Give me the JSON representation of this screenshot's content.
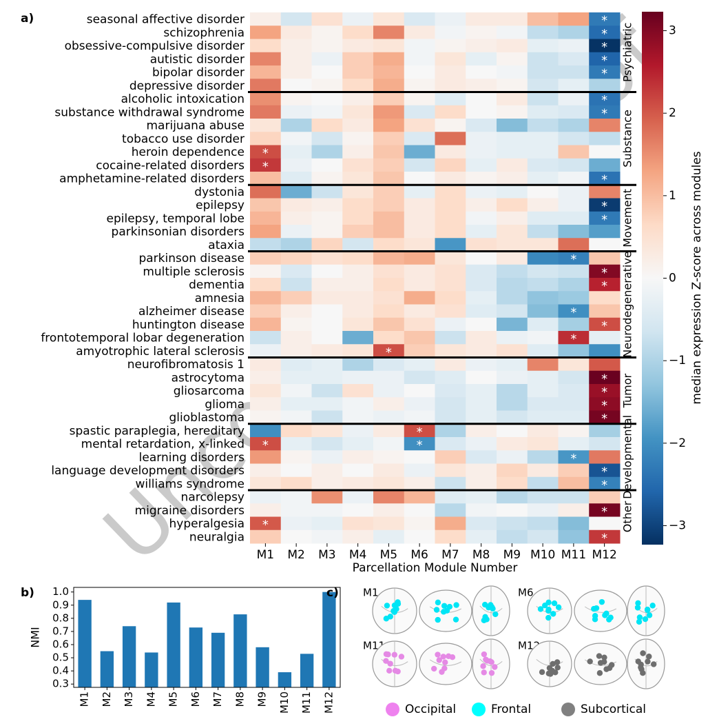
{
  "watermark": "Uncorrected Proof",
  "chart_data": [
    {
      "type": "heatmap",
      "panel_label": "a)",
      "xlabel": "Parcellation Module Number",
      "categories": [
        "M1",
        "M2",
        "M3",
        "M4",
        "M5",
        "M6",
        "M7",
        "M8",
        "M9",
        "M10",
        "M11",
        "M12"
      ],
      "rows": [
        "seasonal affective disorder",
        "schizophrenia",
        "obsessive-compulsive disorder",
        "autistic disorder",
        "bipolar disorder",
        "depressive disorder",
        "alcoholic intoxication",
        "substance withdrawal syndrome",
        "marijuana abuse",
        "tobacco use disorder",
        "heroin dependence",
        "cocaine-related disorders",
        "amphetamine-related disorders",
        "dystonia",
        "epilepsy",
        "epilepsy, temporal lobe",
        "parkinsonian disorders",
        "ataxia",
        "parkinson disease",
        "multiple sclerosis",
        "dementia",
        "amnesia",
        "alzheimer disease",
        "huntington disease",
        "frontotemporal lobar degeneration",
        "amyotrophic lateral sclerosis",
        "neurofibromatosis 1",
        "astrocytoma",
        "gliosarcoma",
        "glioma",
        "glioblastoma",
        "spastic paraplegia, hereditary",
        "mental retardation, x-linked",
        "learning disorders",
        "language development disorders",
        "williams syndrome",
        "narcolepsy",
        "migraine disorders",
        "hyperalgesia",
        "neuralgia"
      ],
      "values": [
        [
          0.2,
          -0.6,
          0.5,
          -0.2,
          0.4,
          -0.5,
          -0.2,
          0.3,
          0.3,
          1.0,
          1.3,
          -2.3
        ],
        [
          1.3,
          0.3,
          0.1,
          0.6,
          1.6,
          0.3,
          -0.1,
          0.1,
          -0.1,
          -0.8,
          -1.0,
          -2.5
        ],
        [
          0.6,
          0.2,
          0.1,
          0.3,
          0.4,
          -0.1,
          0.1,
          0.2,
          0.3,
          -0.3,
          -0.2,
          -3.2
        ],
        [
          1.6,
          0.2,
          -0.2,
          0.8,
          1.2,
          -0.1,
          0.4,
          -0.3,
          0.1,
          -0.7,
          -0.5,
          -2.6
        ],
        [
          1.1,
          0.2,
          0.0,
          0.8,
          1.1,
          0.0,
          0.3,
          0.0,
          -0.1,
          -0.7,
          -0.7,
          -2.3
        ],
        [
          1.7,
          0.0,
          0.1,
          0.6,
          1.2,
          0.1,
          0.3,
          0.2,
          0.1,
          -0.6,
          -0.3,
          -1.0
        ],
        [
          1.5,
          0.1,
          0.0,
          0.2,
          0.8,
          0.1,
          -0.4,
          0.0,
          0.3,
          -0.7,
          -0.2,
          -2.4
        ],
        [
          1.7,
          -0.2,
          -0.1,
          0.4,
          1.4,
          -0.5,
          0.6,
          0.0,
          0.1,
          -0.4,
          -0.5,
          -2.3
        ],
        [
          0.4,
          -1.0,
          0.6,
          0.3,
          1.3,
          0.5,
          0.1,
          -0.5,
          -1.4,
          -0.8,
          -1.0,
          1.6
        ],
        [
          0.7,
          -0.1,
          -0.6,
          0.1,
          0.8,
          -0.5,
          1.8,
          -0.2,
          -0.3,
          -0.3,
          -0.6,
          -0.8
        ],
        [
          2.1,
          -0.3,
          -1.0,
          0.2,
          0.9,
          -1.6,
          0.3,
          -0.2,
          -0.3,
          -0.3,
          0.9,
          0.0
        ],
        [
          2.3,
          -0.2,
          0.0,
          0.5,
          0.8,
          -0.6,
          0.7,
          -0.3,
          0.3,
          -0.5,
          -0.6,
          -1.6
        ],
        [
          1.0,
          -0.4,
          0.1,
          0.4,
          0.9,
          0.0,
          0.3,
          0.1,
          0.2,
          -0.3,
          -0.1,
          -2.4
        ],
        [
          1.8,
          -1.6,
          -0.7,
          0.4,
          0.8,
          -0.3,
          0.6,
          -0.2,
          -0.3,
          0.0,
          -0.2,
          1.6
        ],
        [
          0.9,
          0.3,
          0.2,
          0.6,
          0.8,
          0.3,
          0.6,
          0.2,
          0.6,
          0.2,
          -0.2,
          -3.1
        ],
        [
          1.1,
          0.2,
          0.1,
          0.6,
          1.0,
          0.3,
          0.6,
          -0.1,
          0.2,
          -0.4,
          -0.4,
          -2.3
        ],
        [
          1.3,
          -0.2,
          0.1,
          0.8,
          1.0,
          0.3,
          0.6,
          -0.3,
          0.4,
          -0.8,
          -1.4,
          -1.8
        ],
        [
          -0.8,
          -1.0,
          0.7,
          -0.6,
          0.6,
          0.4,
          -1.9,
          0.5,
          0.4,
          0.4,
          1.8,
          0.0
        ],
        [
          0.8,
          0.7,
          0.5,
          0.6,
          1.1,
          1.2,
          0.4,
          0.0,
          0.3,
          -2.1,
          -2.2,
          0.9
        ],
        [
          0.1,
          -0.5,
          0.0,
          0.2,
          0.5,
          0.3,
          0.5,
          -0.5,
          -0.8,
          -0.6,
          -0.7,
          3.0
        ],
        [
          0.6,
          -0.7,
          0.2,
          0.2,
          0.6,
          0.3,
          0.5,
          -0.5,
          -0.9,
          -0.8,
          -1.0,
          2.5
        ],
        [
          1.1,
          0.8,
          0.3,
          0.3,
          0.5,
          1.2,
          0.6,
          -0.3,
          -0.9,
          -1.3,
          -1.2,
          0.6
        ],
        [
          0.8,
          0.2,
          0.0,
          0.3,
          0.6,
          0.3,
          0.5,
          -0.4,
          -0.6,
          -1.4,
          -2.0,
          0.9
        ],
        [
          1.1,
          0.1,
          0.0,
          0.4,
          0.9,
          0.5,
          -0.2,
          0.0,
          -1.5,
          -0.4,
          -1.1,
          2.1
        ],
        [
          -0.7,
          0.2,
          0.0,
          -1.6,
          0.6,
          0.9,
          -0.7,
          0.3,
          -0.2,
          -0.1,
          2.4,
          -0.3
        ],
        [
          -0.2,
          0.2,
          0.3,
          0.4,
          2.1,
          0.8,
          0.4,
          0.3,
          0.5,
          -0.4,
          -1.3,
          -2.0
        ],
        [
          0.3,
          -0.4,
          -0.3,
          -1.0,
          -0.5,
          -0.3,
          0.3,
          -0.2,
          -0.3,
          1.6,
          0.4,
          2.0
        ],
        [
          0.2,
          -0.3,
          -0.3,
          -0.2,
          -0.2,
          -0.6,
          -0.4,
          0.0,
          -0.2,
          -0.3,
          -0.6,
          3.2
        ],
        [
          0.4,
          -0.1,
          -0.7,
          0.5,
          -0.2,
          0.0,
          -0.5,
          -0.3,
          -0.9,
          -0.3,
          -0.5,
          2.8
        ],
        [
          0.2,
          -0.3,
          -0.3,
          -0.1,
          0.2,
          -0.2,
          -0.6,
          -0.3,
          -0.9,
          -0.5,
          -0.5,
          2.9
        ],
        [
          0.1,
          -0.1,
          -0.7,
          -0.1,
          -0.2,
          -0.1,
          -0.6,
          -0.3,
          -0.6,
          -0.4,
          -0.4,
          3.1
        ],
        [
          -2.0,
          0.6,
          0.4,
          -0.2,
          0.3,
          2.1,
          -1.0,
          0.2,
          0.0,
          0.3,
          0.1,
          -1.1
        ],
        [
          2.1,
          -0.3,
          -0.6,
          -0.3,
          -0.1,
          -2.0,
          -0.5,
          -0.2,
          0.3,
          0.4,
          -0.3,
          -0.6
        ],
        [
          1.4,
          0.1,
          -0.2,
          0.2,
          0.1,
          0.0,
          0.8,
          -0.5,
          -0.2,
          -0.9,
          -1.9,
          1.7
        ],
        [
          0.2,
          0.0,
          0.2,
          0.0,
          0.3,
          -0.2,
          0.4,
          0.2,
          0.7,
          0.3,
          0.8,
          -2.8
        ],
        [
          0.4,
          0.6,
          0.2,
          0.3,
          0.4,
          0.2,
          -0.7,
          0.2,
          0.6,
          -0.8,
          1.0,
          -2.2
        ],
        [
          -0.2,
          -0.1,
          1.5,
          -0.2,
          1.6,
          1.1,
          -0.4,
          -0.3,
          -0.9,
          -0.7,
          -0.7,
          0.8
        ],
        [
          0.2,
          -0.1,
          -0.1,
          0.0,
          0.2,
          0.0,
          -0.9,
          -0.1,
          0.0,
          -0.2,
          0.2,
          3.1
        ],
        [
          2.0,
          -0.2,
          -0.3,
          0.5,
          0.4,
          0.1,
          1.2,
          -0.5,
          -0.7,
          -0.8,
          -1.4,
          0.0
        ],
        [
          0.8,
          0.0,
          -0.1,
          0.2,
          -0.3,
          0.0,
          0.6,
          -0.3,
          -0.8,
          -0.6,
          -1.3,
          2.3
        ]
      ],
      "annotations": [
        {
          "row": 0,
          "col": 11,
          "text": "*"
        },
        {
          "row": 1,
          "col": 11,
          "text": "*"
        },
        {
          "row": 2,
          "col": 11,
          "text": "*"
        },
        {
          "row": 3,
          "col": 11,
          "text": "*"
        },
        {
          "row": 4,
          "col": 11,
          "text": "*"
        },
        {
          "row": 6,
          "col": 11,
          "text": "*"
        },
        {
          "row": 7,
          "col": 11,
          "text": "*"
        },
        {
          "row": 10,
          "col": 0,
          "text": "*"
        },
        {
          "row": 11,
          "col": 0,
          "text": "*"
        },
        {
          "row": 12,
          "col": 11,
          "text": "*"
        },
        {
          "row": 14,
          "col": 11,
          "text": "*"
        },
        {
          "row": 15,
          "col": 11,
          "text": "*"
        },
        {
          "row": 18,
          "col": 10,
          "text": "*"
        },
        {
          "row": 19,
          "col": 11,
          "text": "*"
        },
        {
          "row": 20,
          "col": 11,
          "text": "*"
        },
        {
          "row": 22,
          "col": 10,
          "text": "*"
        },
        {
          "row": 23,
          "col": 11,
          "text": "*"
        },
        {
          "row": 24,
          "col": 10,
          "text": "*"
        },
        {
          "row": 25,
          "col": 4,
          "text": "*"
        },
        {
          "row": 27,
          "col": 11,
          "text": "*"
        },
        {
          "row": 28,
          "col": 11,
          "text": "*"
        },
        {
          "row": 29,
          "col": 11,
          "text": "*"
        },
        {
          "row": 30,
          "col": 11,
          "text": "*"
        },
        {
          "row": 31,
          "col": 5,
          "text": "*"
        },
        {
          "row": 32,
          "col": 0,
          "text": "*"
        },
        {
          "row": 32,
          "col": 5,
          "text": "*"
        },
        {
          "row": 33,
          "col": 10,
          "text": "*"
        },
        {
          "row": 34,
          "col": 11,
          "text": "*"
        },
        {
          "row": 35,
          "col": 11,
          "text": "*"
        },
        {
          "row": 37,
          "col": 11,
          "text": "*"
        },
        {
          "row": 38,
          "col": 0,
          "text": "*"
        },
        {
          "row": 39,
          "col": 11,
          "text": "*"
        }
      ],
      "groups": [
        {
          "name": "Psychiatric",
          "first": 0,
          "last": 5
        },
        {
          "name": "Substance",
          "first": 6,
          "last": 12
        },
        {
          "name": "Movement",
          "first": 13,
          "last": 17
        },
        {
          "name": "Neurodegenerative",
          "first": 18,
          "last": 25
        },
        {
          "name": "Tumor",
          "first": 26,
          "last": 30
        },
        {
          "name": "Developmental",
          "first": 31,
          "last": 35
        },
        {
          "name": "Other",
          "first": 36,
          "last": 39
        }
      ],
      "colorbar": {
        "label": "median expression Z-score across modules",
        "lim": [
          -3.23,
          3.23
        ],
        "ticks": [
          {
            "value": 3,
            "label": "3"
          },
          {
            "value": 2,
            "label": "2"
          },
          {
            "value": 1,
            "label": "1"
          },
          {
            "value": 0,
            "label": "0"
          },
          {
            "value": -1,
            "label": "−1"
          },
          {
            "value": -2,
            "label": "−2"
          },
          {
            "value": -3,
            "label": "−3"
          }
        ]
      },
      "colormap": [
        "#053061",
        "#2166ac",
        "#4393c3",
        "#92c5de",
        "#d1e5f0",
        "#f7f7f7",
        "#fddbc7",
        "#f4a582",
        "#d6604d",
        "#b2182b",
        "#67001f"
      ]
    },
    {
      "type": "bar",
      "panel_label": "b)",
      "ylabel": "NMI",
      "categories": [
        "M1",
        "M2",
        "M3",
        "M4",
        "M5",
        "M6",
        "M7",
        "M8",
        "M9",
        "M10",
        "M11",
        "M12"
      ],
      "values": [
        0.94,
        0.55,
        0.74,
        0.54,
        0.92,
        0.73,
        0.69,
        0.83,
        0.58,
        0.39,
        0.53,
        1.0
      ],
      "color": "#1f77b4",
      "ylim": [
        0.275,
        1.035
      ],
      "yticks": [
        0.3,
        0.4,
        0.5,
        0.6,
        0.7,
        0.8,
        0.9,
        {
          "value": 1,
          "label": "1.0"
        }
      ]
    },
    {
      "type": "brain_map",
      "panel_label": "c)",
      "panels": [
        {
          "label": "M1",
          "color": "#00e5f5"
        },
        {
          "label": "M6",
          "color": "#00e5f5"
        },
        {
          "label": "M11",
          "color": "#e58ae5"
        },
        {
          "label": "M12",
          "color": "#6e6e6e"
        }
      ],
      "legend": [
        {
          "name": "Occipital",
          "color": "#ee82ee"
        },
        {
          "name": "Frontal",
          "color": "#00ffff"
        },
        {
          "name": "Subcortical",
          "color": "#808080"
        }
      ]
    }
  ]
}
